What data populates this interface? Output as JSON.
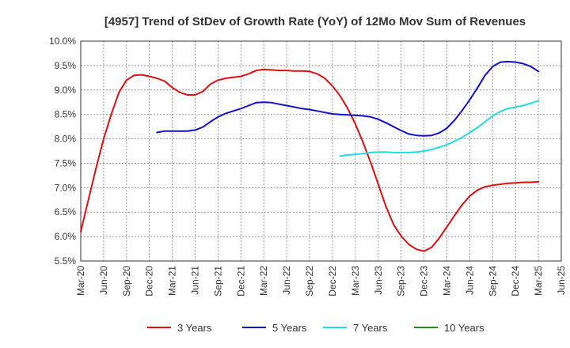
{
  "chart_data": {
    "type": "line",
    "title": "[4957]  Trend of StDev of Growth Rate (YoY) of 12Mo Mov Sum of Revenues",
    "xlabel": "",
    "ylabel": "",
    "ylim": [
      5.5,
      10.0
    ],
    "yticks": [
      "10.0%",
      "9.5%",
      "9.0%",
      "8.5%",
      "8.0%",
      "7.5%",
      "7.0%",
      "6.5%",
      "6.0%",
      "5.5%"
    ],
    "ytick_values": [
      10.0,
      9.5,
      9.0,
      8.5,
      8.0,
      7.5,
      7.0,
      6.5,
      6.0,
      5.5
    ],
    "xticks": [
      "Mar-20",
      "Jun-20",
      "Sep-20",
      "Dec-20",
      "Mar-21",
      "Jun-21",
      "Sep-21",
      "Dec-21",
      "Mar-22",
      "Jun-22",
      "Sep-22",
      "Dec-22",
      "Mar-23",
      "Jun-23",
      "Sep-23",
      "Dec-23",
      "Mar-24",
      "Jun-24",
      "Sep-24",
      "Dec-24",
      "Mar-25",
      "Jun-25"
    ],
    "x_range_months": [
      0,
      63
    ],
    "grid": true,
    "legend_position": "bottom",
    "series": [
      {
        "name": "3 Years",
        "color": "#dd1111",
        "x": [
          0,
          1,
          2,
          3,
          4,
          5,
          6,
          7,
          8,
          9,
          10,
          11,
          12,
          13,
          14,
          15,
          16,
          17,
          18,
          19,
          20,
          21,
          22,
          23,
          24,
          25,
          26,
          27,
          28,
          29,
          30,
          31,
          32,
          33,
          34,
          35,
          36,
          37,
          38,
          39,
          40,
          41,
          42,
          43,
          44,
          45,
          46,
          47,
          48,
          49,
          50,
          51,
          52,
          53,
          54,
          55,
          56,
          57,
          58,
          59,
          60
        ],
        "values": [
          6.1,
          6.75,
          7.4,
          8.0,
          8.5,
          8.95,
          9.2,
          9.3,
          9.31,
          9.28,
          9.24,
          9.18,
          9.05,
          8.95,
          8.9,
          8.9,
          8.97,
          9.12,
          9.2,
          9.24,
          9.26,
          9.28,
          9.33,
          9.4,
          9.42,
          9.41,
          9.4,
          9.4,
          9.39,
          9.39,
          9.38,
          9.33,
          9.24,
          9.08,
          8.88,
          8.62,
          8.3,
          7.93,
          7.52,
          7.07,
          6.62,
          6.25,
          6.01,
          5.84,
          5.74,
          5.7,
          5.78,
          5.97,
          6.2,
          6.43,
          6.65,
          6.83,
          6.95,
          7.02,
          7.05,
          7.07,
          7.09,
          7.1,
          7.11,
          7.11,
          7.12
        ]
      },
      {
        "name": "5 Years",
        "color": "#1111cc",
        "x": [
          10,
          11,
          12,
          13,
          14,
          15,
          16,
          17,
          18,
          19,
          20,
          21,
          22,
          23,
          24,
          25,
          26,
          27,
          28,
          29,
          30,
          31,
          32,
          33,
          34,
          35,
          36,
          37,
          38,
          39,
          40,
          41,
          42,
          43,
          44,
          45,
          46,
          47,
          48,
          49,
          50,
          51,
          52,
          53,
          54,
          55,
          56,
          57,
          58,
          59,
          60
        ],
        "values": [
          8.13,
          8.16,
          8.16,
          8.16,
          8.16,
          8.18,
          8.24,
          8.35,
          8.45,
          8.52,
          8.57,
          8.62,
          8.68,
          8.74,
          8.75,
          8.74,
          8.71,
          8.68,
          8.65,
          8.62,
          8.6,
          8.57,
          8.54,
          8.51,
          8.5,
          8.49,
          8.48,
          8.47,
          8.45,
          8.4,
          8.33,
          8.25,
          8.17,
          8.1,
          8.07,
          8.06,
          8.07,
          8.12,
          8.22,
          8.38,
          8.58,
          8.8,
          9.04,
          9.3,
          9.48,
          9.57,
          9.58,
          9.57,
          9.54,
          9.48,
          9.38
        ]
      },
      {
        "name": "7 Years",
        "color": "#22dddd",
        "x": [
          34,
          35,
          36,
          37,
          38,
          39,
          40,
          41,
          42,
          43,
          44,
          45,
          46,
          47,
          48,
          49,
          50,
          51,
          52,
          53,
          54,
          55,
          56,
          57,
          58,
          59,
          60
        ],
        "values": [
          7.65,
          7.67,
          7.68,
          7.7,
          7.72,
          7.73,
          7.73,
          7.72,
          7.72,
          7.72,
          7.73,
          7.75,
          7.78,
          7.83,
          7.88,
          7.95,
          8.03,
          8.13,
          8.23,
          8.35,
          8.47,
          8.56,
          8.62,
          8.65,
          8.68,
          8.73,
          8.78
        ]
      },
      {
        "name": "10 Years",
        "color": "#228822",
        "x": [],
        "values": []
      }
    ]
  }
}
